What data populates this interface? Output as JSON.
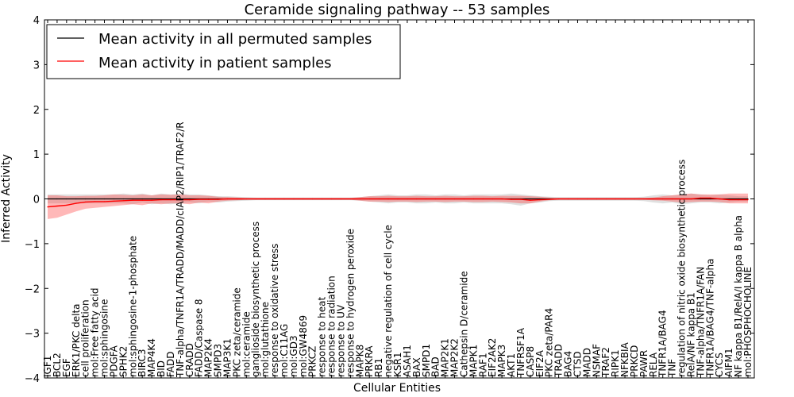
{
  "chart_data": {
    "type": "line",
    "title": "Ceramide signaling pathway -- 53 samples",
    "xlabel": "Cellular Entities",
    "ylabel": "Inferred Activity",
    "ylim": [
      -4,
      4
    ],
    "yticks": [
      -4,
      -3,
      -2,
      -1,
      0,
      1,
      2,
      3,
      4
    ],
    "legend_position": "top-left",
    "grid": false,
    "categories": [
      "IGF1",
      "BCL2",
      "EGF",
      "ERK1/PKC delta",
      "cell proliferation",
      "mol:Free fatty acid",
      "mol:sphingosine",
      "PDGFA",
      "SPHK2",
      "mol:sphingosine-1-phosphate",
      "BIRC3",
      "MAP4K4",
      "BID",
      "FADD",
      "TNF-alpha/TNFR1A/TRADD/MADD/cIAP2/RIP1/TRAF2/R",
      "CRADD",
      "FADD/Caspase 8",
      "MAP2K4",
      "SMPD3",
      "MAP3K1",
      "PKC zeta/ceramide",
      "mol:ceramide",
      "ganglioside biosynthetic process",
      "mol:glutathione",
      "response to oxidative stress",
      "mol:C11AG",
      "mol:GD3",
      "mol:GW4869",
      "PRKCZ",
      "response to heat",
      "response to radiation",
      "response to UV",
      "response to hydrogen peroxide",
      "MAPK8",
      "PRKRA",
      "RB1",
      "negative regulation of cell cycle",
      "KSR1",
      "ASAH1",
      "BAX",
      "SMPD1",
      "BAD",
      "MAP2K1",
      "MAP2K2",
      "Cathepsin D/ceramide",
      "MAPK1",
      "RAF1",
      "EIF2AK2",
      "MAPK3",
      "AKT1",
      "TNFRSF1A",
      "CASP8",
      "EIF2A",
      "PKC zeta/PAR4",
      "TRADD",
      "BAG4",
      "CTSD",
      "MADD",
      "NSMAF",
      "TRAF2",
      "RIPK1",
      "NFKBIA",
      "PRKCD",
      "PAWR",
      "RELA",
      "TNFR1A/BAG4",
      "TNF",
      "regulation of nitric oxide biosynthetic process",
      "RelA/NF kappa B1",
      "TNF-alpha/TNFR1A/FAN",
      "TNFR1A/BAG4/TNF-alpha",
      "CYCS",
      "AIFM1",
      "NF kappa B1/RelA/I kappa B alpha",
      "mol:PHOSPHOCHOLINE"
    ],
    "series": [
      {
        "name": "Mean activity in all permuted samples",
        "color": "#000000",
        "values": [
          0.0,
          0.0,
          0.0,
          0.0,
          0.0,
          0.0,
          0.0,
          0.0,
          0.0,
          0.0,
          0.0,
          0.0,
          0.0,
          0.0,
          0.0,
          0.0,
          0.0,
          0.0,
          0.0,
          0.0,
          0.0,
          0.0,
          0.0,
          0.0,
          0.0,
          0.0,
          0.0,
          0.0,
          0.0,
          0.0,
          0.0,
          0.0,
          0.0,
          0.0,
          0.0,
          0.0,
          0.0,
          0.0,
          0.0,
          0.0,
          0.0,
          0.0,
          0.0,
          0.0,
          0.0,
          0.0,
          0.0,
          0.0,
          0.0,
          0.0,
          0.0,
          0.0,
          0.0,
          0.0,
          0.0,
          0.0,
          0.0,
          0.0,
          0.0,
          0.0,
          0.0,
          0.0,
          0.0,
          0.0,
          0.0,
          0.0,
          0.0,
          0.0,
          0.0,
          0.0,
          0.0,
          0.0,
          0.0,
          0.0,
          0.0
        ],
        "band_low": [
          -0.1,
          -0.1,
          -0.1,
          -0.1,
          -0.1,
          -0.1,
          -0.1,
          -0.1,
          -0.1,
          -0.12,
          -0.08,
          -0.12,
          -0.1,
          -0.12,
          -0.1,
          -0.08,
          -0.1,
          -0.06,
          -0.08,
          -0.06,
          -0.05,
          -0.04,
          -0.03,
          -0.03,
          -0.03,
          -0.03,
          -0.03,
          -0.03,
          -0.03,
          -0.03,
          -0.03,
          -0.03,
          -0.03,
          -0.04,
          -0.06,
          -0.08,
          -0.1,
          -0.08,
          -0.08,
          -0.1,
          -0.1,
          -0.08,
          -0.1,
          -0.1,
          -0.08,
          -0.1,
          -0.1,
          -0.1,
          -0.1,
          -0.12,
          -0.15,
          -0.1,
          -0.08,
          -0.05,
          -0.04,
          -0.04,
          -0.04,
          -0.04,
          -0.04,
          -0.04,
          -0.04,
          -0.04,
          -0.04,
          -0.05,
          -0.08,
          -0.1,
          -0.08,
          -0.12,
          -0.1,
          -0.08,
          -0.08,
          -0.1,
          -0.08,
          -0.06,
          -0.06
        ],
        "band_high": [
          0.1,
          0.1,
          0.1,
          0.1,
          0.1,
          0.1,
          0.1,
          0.1,
          0.12,
          0.1,
          0.12,
          0.08,
          0.12,
          0.1,
          0.12,
          0.1,
          0.1,
          0.08,
          0.06,
          0.06,
          0.05,
          0.04,
          0.03,
          0.03,
          0.03,
          0.03,
          0.03,
          0.03,
          0.03,
          0.03,
          0.03,
          0.03,
          0.03,
          0.04,
          0.06,
          0.08,
          0.1,
          0.08,
          0.08,
          0.1,
          0.1,
          0.08,
          0.1,
          0.1,
          0.08,
          0.1,
          0.1,
          0.1,
          0.1,
          0.12,
          0.1,
          0.08,
          0.06,
          0.05,
          0.04,
          0.04,
          0.04,
          0.04,
          0.04,
          0.04,
          0.04,
          0.04,
          0.04,
          0.05,
          0.08,
          0.1,
          0.08,
          0.1,
          0.12,
          0.1,
          0.08,
          0.1,
          0.08,
          0.06,
          0.06
        ]
      },
      {
        "name": "Mean activity in patient samples",
        "color": "#ff0000",
        "values": [
          -0.18,
          -0.16,
          -0.14,
          -0.1,
          -0.07,
          -0.06,
          -0.06,
          -0.05,
          -0.04,
          -0.03,
          -0.03,
          -0.03,
          -0.02,
          -0.02,
          -0.02,
          -0.02,
          -0.01,
          -0.01,
          -0.01,
          0.0,
          0.0,
          0.0,
          0.0,
          0.0,
          0.0,
          0.0,
          0.0,
          0.0,
          0.0,
          0.0,
          0.0,
          0.0,
          0.0,
          0.0,
          0.0,
          0.0,
          0.0,
          0.0,
          0.0,
          0.0,
          0.0,
          0.0,
          0.0,
          0.0,
          0.0,
          0.0,
          0.0,
          0.0,
          0.0,
          -0.01,
          -0.01,
          -0.03,
          -0.02,
          -0.01,
          0.0,
          0.0,
          0.0,
          0.0,
          0.0,
          0.0,
          0.0,
          0.0,
          0.0,
          0.0,
          0.0,
          0.0,
          0.0,
          0.0,
          0.0,
          0.02,
          0.02,
          0.0,
          -0.02,
          -0.02,
          -0.02
        ],
        "band_low": [
          -0.45,
          -0.42,
          -0.35,
          -0.28,
          -0.22,
          -0.2,
          -0.18,
          -0.16,
          -0.14,
          -0.12,
          -0.14,
          -0.1,
          -0.12,
          -0.1,
          -0.1,
          -0.12,
          -0.08,
          -0.1,
          -0.06,
          -0.04,
          -0.03,
          -0.02,
          -0.02,
          -0.02,
          -0.02,
          -0.02,
          -0.02,
          -0.02,
          -0.02,
          -0.02,
          -0.02,
          -0.02,
          -0.02,
          -0.04,
          -0.06,
          -0.06,
          -0.07,
          -0.06,
          -0.06,
          -0.07,
          -0.06,
          -0.06,
          -0.07,
          -0.06,
          -0.06,
          -0.07,
          -0.07,
          -0.06,
          -0.07,
          -0.08,
          -0.1,
          -0.1,
          -0.06,
          -0.03,
          -0.02,
          -0.02,
          -0.02,
          -0.02,
          -0.02,
          -0.02,
          -0.02,
          -0.02,
          -0.02,
          -0.02,
          -0.03,
          -0.04,
          -0.06,
          -0.08,
          -0.07,
          -0.06,
          -0.06,
          -0.07,
          -0.1,
          -0.1,
          -0.1
        ],
        "band_high": [
          0.08,
          0.08,
          0.06,
          0.06,
          0.07,
          0.07,
          0.08,
          0.1,
          0.09,
          0.08,
          0.1,
          0.08,
          0.1,
          0.09,
          0.1,
          0.08,
          0.08,
          0.07,
          0.05,
          0.04,
          0.03,
          0.02,
          0.02,
          0.02,
          0.02,
          0.02,
          0.02,
          0.02,
          0.02,
          0.02,
          0.02,
          0.02,
          0.02,
          0.04,
          0.06,
          0.06,
          0.07,
          0.06,
          0.06,
          0.07,
          0.06,
          0.06,
          0.07,
          0.06,
          0.06,
          0.07,
          0.07,
          0.06,
          0.07,
          0.07,
          0.07,
          0.06,
          0.05,
          0.03,
          0.02,
          0.02,
          0.02,
          0.02,
          0.02,
          0.02,
          0.02,
          0.02,
          0.02,
          0.02,
          0.03,
          0.06,
          0.08,
          0.1,
          0.12,
          0.1,
          0.1,
          0.1,
          0.12,
          0.12,
          0.12
        ]
      }
    ]
  }
}
